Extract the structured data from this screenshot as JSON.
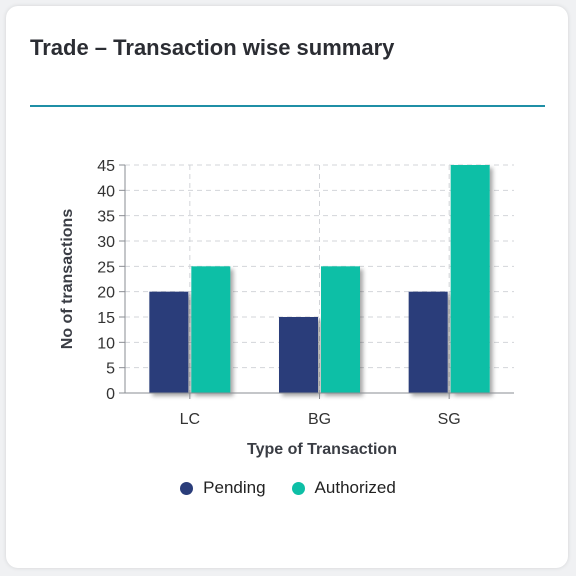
{
  "card": {
    "title": "Trade – Transaction wise summary"
  },
  "chart_data": {
    "type": "bar",
    "categories": [
      "LC",
      "BG",
      "SG"
    ],
    "series": [
      {
        "name": "Pending",
        "values": [
          20,
          15,
          20
        ],
        "color": "#2a3d7a"
      },
      {
        "name": "Authorized",
        "values": [
          25,
          25,
          45
        ],
        "color": "#0dbfa6"
      }
    ],
    "xlabel": "Type of Transaction",
    "ylabel": "No of transactions",
    "ylim": [
      0,
      45
    ],
    "yticks": [
      0,
      5,
      10,
      15,
      20,
      25,
      30,
      35,
      40,
      45
    ],
    "grid": true,
    "legend_position": "bottom"
  }
}
